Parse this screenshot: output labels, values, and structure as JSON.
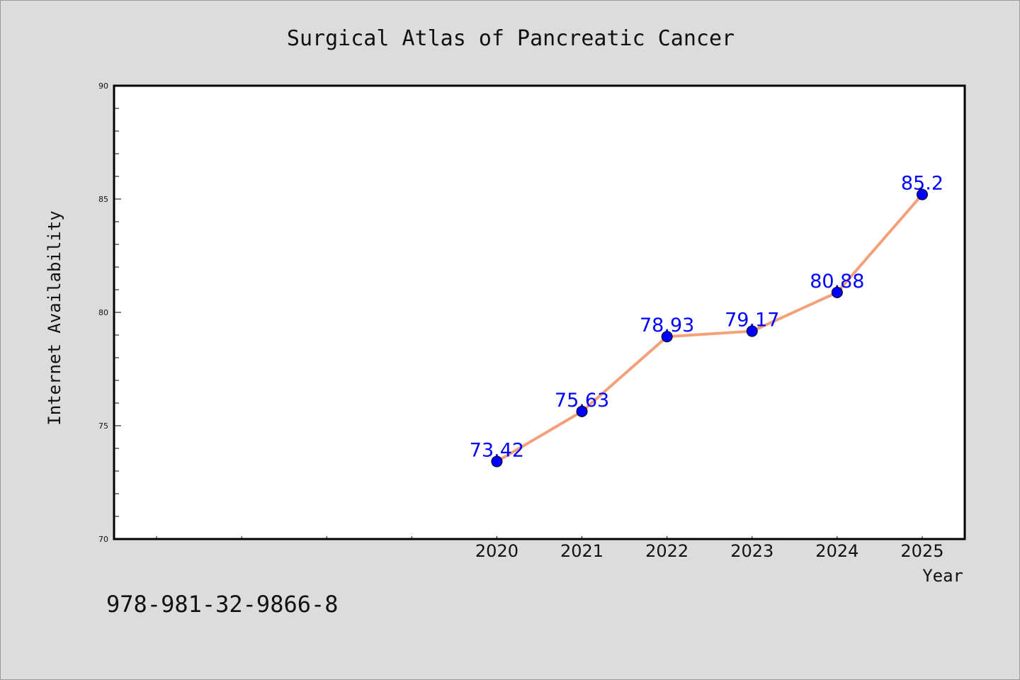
{
  "chart_data": {
    "type": "line",
    "title": "Surgical Atlas of Pancreatic Cancer",
    "xlabel": "Year",
    "ylabel": "Internet Availability",
    "categories": [
      "2020",
      "2021",
      "2022",
      "2023",
      "2024",
      "2025"
    ],
    "x_domain": [
      2015.5,
      2025.5
    ],
    "series": [
      {
        "values": [
          73.42,
          75.63,
          78.93,
          79.17,
          80.88,
          85.2
        ],
        "data_labels": [
          "73.42",
          "75.63",
          "78.93",
          "79.17",
          "80.88",
          "85.2"
        ],
        "line_color": "#f4a07a",
        "marker_color": "#0000ff"
      }
    ],
    "ylim": [
      70,
      90
    ],
    "y_ticks": [
      "70",
      "75",
      "80",
      "85",
      "90"
    ],
    "grid": false,
    "legend": "none"
  },
  "footer": {
    "isbn": "978-981-32-9866-8"
  },
  "colors": {
    "background": "#dcdcdc",
    "plot_area": "#ffffff",
    "axis": "#000000"
  }
}
